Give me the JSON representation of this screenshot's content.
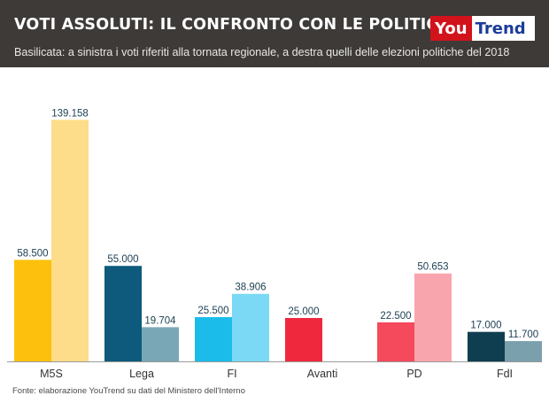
{
  "header": {
    "title": "VOTI ASSOLUTI: IL CONFRONTO CON LE POLITICHE",
    "subtitle": "Basilicata: a sinistra i voti riferiti alla tornata regionale, a destra quelli delle elezioni politiche del 2018",
    "logo_you": "You",
    "logo_trend": "Trend"
  },
  "footer": {
    "source": "Fonte: elaborazione YouTrend su dati del Ministero dell'Interno"
  },
  "chart_data": {
    "type": "bar",
    "title": "VOTI ASSOLUTI: IL CONFRONTO CON LE POLITICHE",
    "categories": [
      "M5S",
      "Lega",
      "FI",
      "Avanti",
      "PD",
      "FdI"
    ],
    "series": [
      {
        "values": [
          58500,
          55000,
          25500,
          25000,
          22500,
          17000
        ],
        "labels": [
          "58.500",
          "55.000",
          "25.500",
          "25.000",
          "22.500",
          "17.000"
        ],
        "colors": [
          "#fdc10d",
          "#0d5a7d",
          "#1bbcea",
          "#f0283d",
          "#f5495c",
          "#0f3e51"
        ]
      },
      {
        "values": [
          139158,
          19704,
          38906,
          null,
          50653,
          11700
        ],
        "labels": [
          "139.158",
          "19.704",
          "38.906",
          "",
          "50.653",
          "11.700"
        ],
        "colors": [
          "#fddd8a",
          "#7aa7b5",
          "#7bd9f5",
          "#f78e99",
          "#f9a5ad",
          "#7aa0ad"
        ]
      }
    ],
    "ylim": [
      0,
      150000
    ],
    "grid": false,
    "legend": "none",
    "axis_color": "#9a9a9a"
  }
}
